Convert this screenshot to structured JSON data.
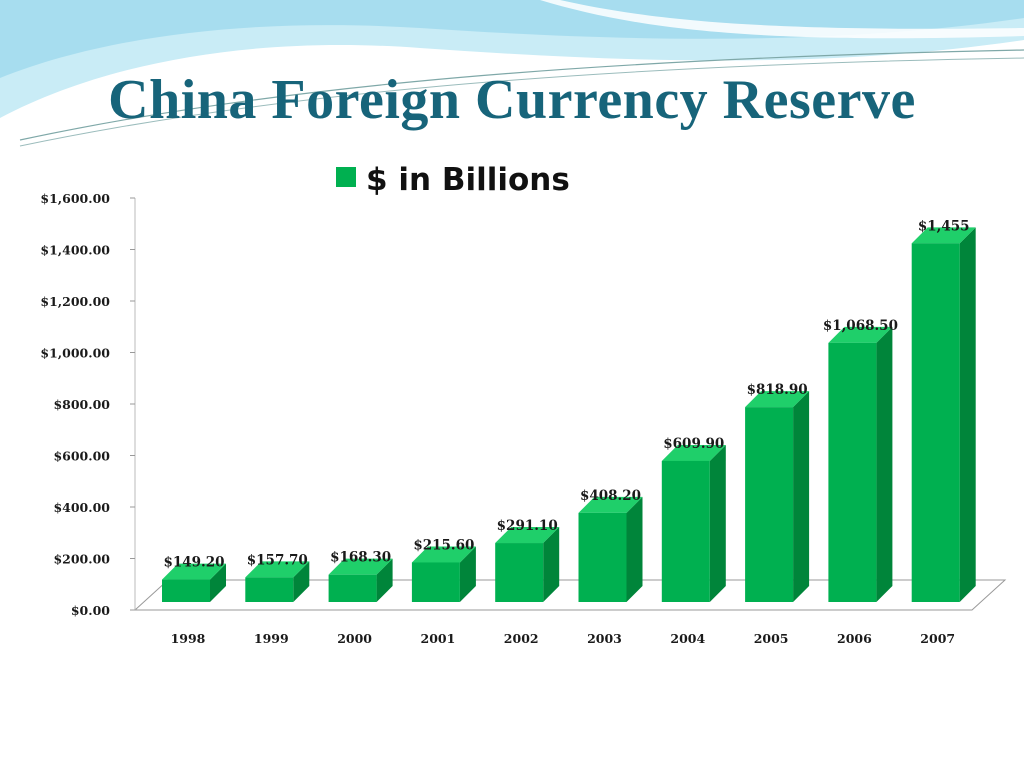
{
  "slide": {
    "title": "China Foreign Currency Reserve"
  },
  "colors": {
    "title": "#17647a",
    "bar_front": "#00b050",
    "bar_side": "#00853a",
    "bar_top": "#1fcf6a",
    "banner": "#a9dff0"
  },
  "chart_data": {
    "type": "bar",
    "title": "China Foreign Currency Reserve",
    "categories": [
      "1998",
      "1999",
      "2000",
      "2001",
      "2002",
      "2003",
      "2004",
      "2005",
      "2006",
      "2007"
    ],
    "series": [
      {
        "name": "$ in Billions",
        "values": [
          149.2,
          157.7,
          168.3,
          215.6,
          291.1,
          408.2,
          609.9,
          818.9,
          1068.5,
          1455
        ],
        "data_labels": [
          "$149.20",
          "$157.70",
          "$168.30",
          "$215.60",
          "$291.10",
          "$408.20",
          "$609.90",
          "$818.90",
          "$1,068.50",
          "$1,455"
        ]
      }
    ],
    "yticks": [
      "$0.00",
      "$200.00",
      "$400.00",
      "$600.00",
      "$800.00",
      "$1,000.00",
      "$1,200.00",
      "$1,400.00",
      "$1,600.00"
    ],
    "ylim": [
      0,
      1600
    ],
    "xlabel": "",
    "ylabel": "",
    "grid": false,
    "legend_position": "top",
    "style": "3d-column"
  }
}
